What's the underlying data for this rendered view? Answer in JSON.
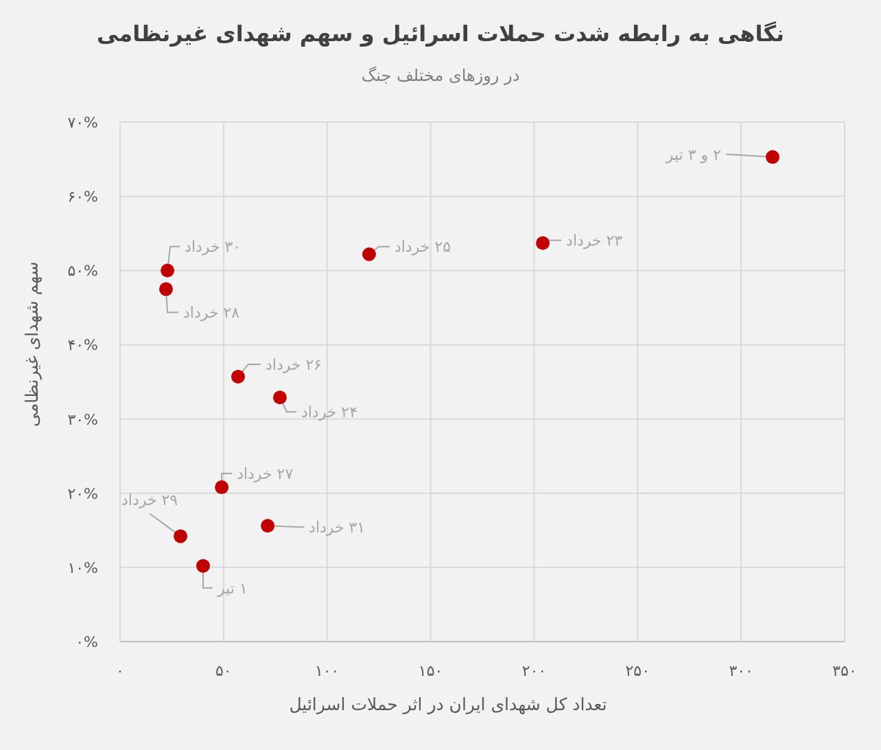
{
  "chart_data": {
    "type": "scatter",
    "title": "نگاهی به رابطه شدت حملات اسرائیل و سهم شهدای غیرنظامی",
    "subtitle": "در روزهای مختلف جنگ",
    "xlabel": "تعداد کل شهدای ایران در اثر حملات اسرائیل",
    "ylabel": "سهم شهدای غیرنظامی",
    "x": [
      22.9,
      22.2,
      120.3,
      204.2,
      315.2,
      57.0,
      77.2,
      49.1,
      29.2,
      71.3,
      40.1
    ],
    "series": [
      {
        "color": "#c00000",
        "values": [
          50.0,
          47.5,
          52.2,
          53.7,
          65.3,
          35.7,
          32.9,
          20.8,
          14.2,
          15.6,
          10.2
        ]
      }
    ],
    "marker": "circle",
    "grid": true,
    "xlim": [
      0,
      350
    ],
    "ylim": [
      0,
      70
    ],
    "xticks": [
      {
        "value": 0,
        "label": "۰"
      },
      {
        "value": 50,
        "label": "۵۰"
      },
      {
        "value": 100,
        "label": "۱۰۰"
      },
      {
        "value": 150,
        "label": "۱۵۰"
      },
      {
        "value": 200,
        "label": "۲۰۰"
      },
      {
        "value": 250,
        "label": "۲۵۰"
      },
      {
        "value": 300,
        "label": "۳۰۰"
      },
      {
        "value": 350,
        "label": "۳۵۰"
      }
    ],
    "yticks": [
      {
        "value": 0,
        "label": "۰%"
      },
      {
        "value": 10,
        "label": "۱۰%"
      },
      {
        "value": 20,
        "label": "۲۰%"
      },
      {
        "value": 30,
        "label": "۳۰%"
      },
      {
        "value": 40,
        "label": "۴۰%"
      },
      {
        "value": 50,
        "label": "۵۰%"
      },
      {
        "value": 60,
        "label": "۶۰%"
      },
      {
        "value": 70,
        "label": "۷۰%"
      }
    ],
    "annotations": [
      {
        "text": "۳۰ خرداد",
        "x": 22.9,
        "y": 50.0
      },
      {
        "text": "۲۸ خرداد",
        "x": 22.2,
        "y": 47.5
      },
      {
        "text": "۲۵ خرداد",
        "x": 120.3,
        "y": 52.2
      },
      {
        "text": "۲۳ خرداد",
        "x": 204.2,
        "y": 53.7
      },
      {
        "text": "۲ و ۳ تیر",
        "x": 315.2,
        "y": 65.3
      },
      {
        "text": "۲۶ خرداد",
        "x": 57.0,
        "y": 35.7
      },
      {
        "text": "۲۴ خرداد",
        "x": 77.2,
        "y": 32.9
      },
      {
        "text": "۲۷ خرداد",
        "x": 49.1,
        "y": 20.8
      },
      {
        "text": "۲۹ خرداد",
        "x": 29.2,
        "y": 14.2
      },
      {
        "text": "۳۱ خرداد",
        "x": 71.3,
        "y": 15.6
      },
      {
        "text": "۱ تیر",
        "x": 40.1,
        "y": 10.2
      }
    ]
  }
}
